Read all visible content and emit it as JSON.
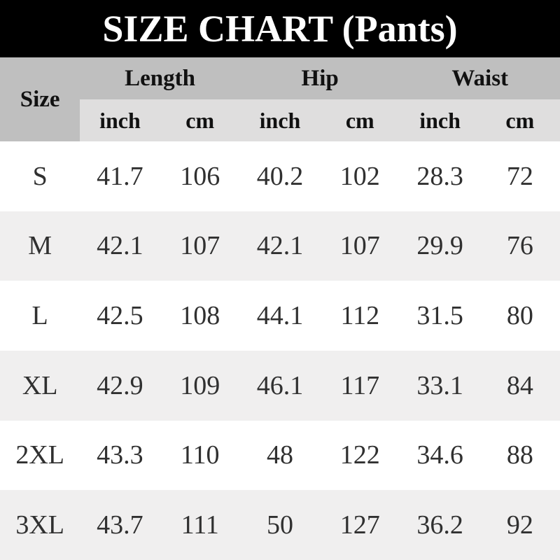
{
  "title": "SIZE CHART (Pants)",
  "table": {
    "size_header": "Size",
    "groups": [
      {
        "label": "Length",
        "units": [
          "inch",
          "cm"
        ]
      },
      {
        "label": "Hip",
        "units": [
          "inch",
          "cm"
        ]
      },
      {
        "label": "Waist",
        "units": [
          "inch",
          "cm"
        ]
      }
    ],
    "rows": [
      {
        "size": "S",
        "values": [
          "41.7",
          "106",
          "40.2",
          "102",
          "28.3",
          "72"
        ]
      },
      {
        "size": "M",
        "values": [
          "42.1",
          "107",
          "42.1",
          "107",
          "29.9",
          "76"
        ]
      },
      {
        "size": "L",
        "values": [
          "42.5",
          "108",
          "44.1",
          "112",
          "31.5",
          "80"
        ]
      },
      {
        "size": "XL",
        "values": [
          "42.9",
          "109",
          "46.1",
          "117",
          "33.1",
          "84"
        ]
      },
      {
        "size": "2XL",
        "values": [
          "43.3",
          "110",
          "48",
          "122",
          "34.6",
          "88"
        ]
      },
      {
        "size": "3XL",
        "values": [
          "43.7",
          "111",
          "50",
          "127",
          "36.2",
          "92"
        ]
      }
    ]
  },
  "colors": {
    "title_bg": "#000000",
    "title_text": "#ffffff",
    "header_bg": "#bfbfbf",
    "subheader_bg": "#dfdede",
    "row_bg": "#ffffff",
    "row_alt_bg": "#f0efef",
    "text": "#303030"
  },
  "chart_data": {
    "type": "table",
    "title": "SIZE CHART (Pants)",
    "columns": [
      "Size",
      "Length inch",
      "Length cm",
      "Hip inch",
      "Hip cm",
      "Waist inch",
      "Waist cm"
    ],
    "rows": [
      [
        "S",
        41.7,
        106,
        40.2,
        102,
        28.3,
        72
      ],
      [
        "M",
        42.1,
        107,
        42.1,
        107,
        29.9,
        76
      ],
      [
        "L",
        42.5,
        108,
        44.1,
        112,
        31.5,
        80
      ],
      [
        "XL",
        42.9,
        109,
        46.1,
        117,
        33.1,
        84
      ],
      [
        "2XL",
        43.3,
        110,
        48,
        122,
        34.6,
        88
      ],
      [
        "3XL",
        43.7,
        111,
        50,
        127,
        36.2,
        92
      ]
    ]
  }
}
